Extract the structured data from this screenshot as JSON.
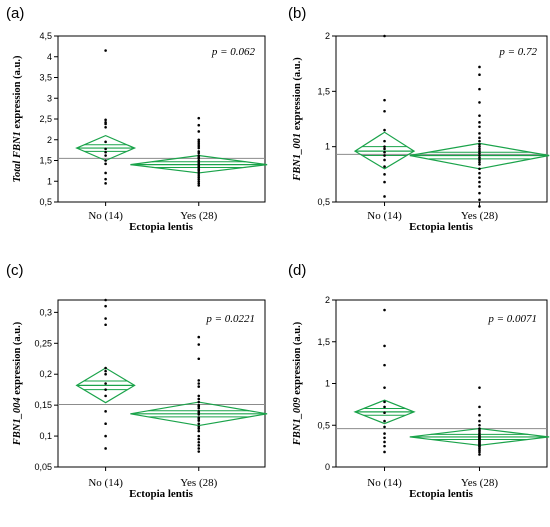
{
  "colors": {
    "diamond": "#1aa34a",
    "grand_mean": "#8c8c8c",
    "frame": "#000000",
    "point": "#000000"
  },
  "chart_data": [
    {
      "type": "scatter",
      "panel_letter": "(a)",
      "ylabel_italic": "Total FBN1",
      "ylabel_rest": " expression (a.u.)",
      "xlabel": "Ectopia lentis",
      "p_value": "p = 0.062",
      "categories": [
        "No (14)",
        "Yes (28)"
      ],
      "ylim": [
        0.5,
        4.5
      ],
      "yticks": [
        0.5,
        1,
        1.5,
        2,
        2.5,
        3,
        3.5,
        4,
        4.5
      ],
      "ytick_labels": [
        "0,5",
        "1",
        "1,5",
        "2",
        "2,5",
        "3",
        "3,5",
        "4",
        "4,5"
      ],
      "grand_mean": 1.55,
      "groups": [
        {
          "mean": 1.8,
          "ci": [
            1.5,
            2.1
          ],
          "inner": [
            1.72,
            1.88
          ],
          "points": [
            4.15,
            2.48,
            2.42,
            2.38,
            2.3,
            1.95,
            1.78,
            1.7,
            1.62,
            1.5,
            1.42,
            1.2,
            1.05,
            0.95
          ]
        },
        {
          "mean": 1.4,
          "ci": [
            1.2,
            1.62
          ],
          "inner": [
            1.33,
            1.47
          ],
          "points": [
            2.52,
            2.35,
            2.2,
            2.0,
            1.95,
            1.9,
            1.85,
            1.8,
            1.72,
            1.68,
            1.62,
            1.58,
            1.55,
            1.5,
            1.46,
            1.42,
            1.38,
            1.35,
            1.32,
            1.28,
            1.25,
            1.2,
            1.15,
            1.1,
            1.05,
            1.0,
            0.95,
            0.9
          ]
        }
      ]
    },
    {
      "type": "scatter",
      "panel_letter": "(b)",
      "ylabel_italic": "FBN1_001",
      "ylabel_rest": " expression (a.u.)",
      "xlabel": "Ectopia lentis",
      "p_value": "p = 0.72",
      "categories": [
        "No (14)",
        "Yes (28)"
      ],
      "ylim": [
        0.5,
        2
      ],
      "yticks": [
        0.5,
        1,
        1.5,
        2
      ],
      "ytick_labels": [
        "0,5",
        "1",
        "1,5",
        "2"
      ],
      "grand_mean": 0.93,
      "groups": [
        {
          "mean": 0.96,
          "ci": [
            0.8,
            1.13
          ],
          "inner": [
            0.92,
            1.0
          ],
          "points": [
            2.0,
            1.42,
            1.32,
            1.15,
            1.05,
            1.0,
            0.98,
            0.95,
            0.92,
            0.88,
            0.82,
            0.75,
            0.68,
            0.55
          ]
        },
        {
          "mean": 0.92,
          "ci": [
            0.8,
            1.03
          ],
          "inner": [
            0.89,
            0.95
          ],
          "points": [
            1.72,
            1.65,
            1.52,
            1.4,
            1.28,
            1.22,
            1.18,
            1.12,
            1.08,
            1.05,
            1.02,
            1.0,
            0.98,
            0.96,
            0.94,
            0.92,
            0.9,
            0.88,
            0.86,
            0.84,
            0.8,
            0.76,
            0.72,
            0.68,
            0.64,
            0.58,
            0.52,
            0.46
          ]
        }
      ]
    },
    {
      "type": "scatter",
      "panel_letter": "(c)",
      "ylabel_italic": "FBN1_004",
      "ylabel_rest": " expression (a.u.)",
      "xlabel": "Ectopia lentis",
      "p_value": "p = 0.0221",
      "categories": [
        "No (14)",
        "Yes (28)"
      ],
      "ylim": [
        0.05,
        0.32
      ],
      "yticks": [
        0.05,
        0.1,
        0.15,
        0.2,
        0.25,
        0.3
      ],
      "ytick_labels": [
        "0,05",
        "0,1",
        "0,15",
        "0,2",
        "0,25",
        "0,3"
      ],
      "grand_mean": 0.151,
      "groups": [
        {
          "mean": 0.182,
          "ci": [
            0.154,
            0.21
          ],
          "inner": [
            0.175,
            0.189
          ],
          "points": [
            0.32,
            0.31,
            0.29,
            0.28,
            0.21,
            0.205,
            0.2,
            0.185,
            0.175,
            0.165,
            0.14,
            0.12,
            0.1,
            0.08
          ]
        },
        {
          "mean": 0.136,
          "ci": [
            0.117,
            0.155
          ],
          "inner": [
            0.131,
            0.141
          ],
          "points": [
            0.26,
            0.248,
            0.225,
            0.19,
            0.185,
            0.18,
            0.165,
            0.16,
            0.155,
            0.15,
            0.148,
            0.145,
            0.14,
            0.138,
            0.135,
            0.13,
            0.128,
            0.125,
            0.12,
            0.115,
            0.112,
            0.108,
            0.1,
            0.095,
            0.09,
            0.085,
            0.08,
            0.075
          ]
        }
      ]
    },
    {
      "type": "scatter",
      "panel_letter": "(d)",
      "ylabel_italic": "FBN1_009",
      "ylabel_rest": " expression (a.u.)",
      "xlabel": "Ectopia lentis",
      "p_value": "p = 0.0071",
      "categories": [
        "No (14)",
        "Yes (28)"
      ],
      "ylim": [
        0,
        2
      ],
      "yticks": [
        0,
        0.5,
        1,
        1.5,
        2
      ],
      "ytick_labels": [
        "0",
        "0,5",
        "1",
        "1,5",
        "2"
      ],
      "grand_mean": 0.46,
      "groups": [
        {
          "mean": 0.66,
          "ci": [
            0.52,
            0.8
          ],
          "inner": [
            0.62,
            0.7
          ],
          "points": [
            1.88,
            1.45,
            1.22,
            0.95,
            0.78,
            0.72,
            0.65,
            0.55,
            0.48,
            0.4,
            0.35,
            0.3,
            0.25,
            0.18
          ]
        },
        {
          "mean": 0.36,
          "ci": [
            0.26,
            0.46
          ],
          "inner": [
            0.33,
            0.39
          ],
          "points": [
            0.95,
            0.72,
            0.62,
            0.55,
            0.5,
            0.46,
            0.44,
            0.42,
            0.4,
            0.38,
            0.37,
            0.36,
            0.35,
            0.34,
            0.33,
            0.32,
            0.31,
            0.3,
            0.29,
            0.28,
            0.27,
            0.26,
            0.25,
            0.24,
            0.22,
            0.2,
            0.18,
            0.15
          ]
        }
      ]
    }
  ]
}
